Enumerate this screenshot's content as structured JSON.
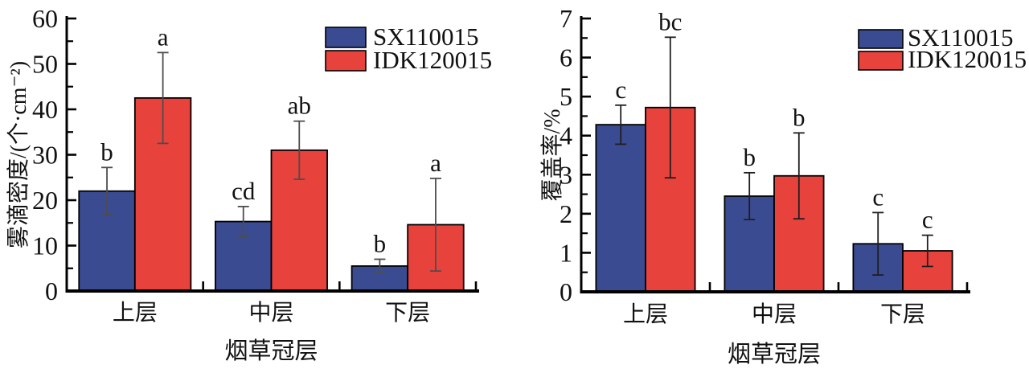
{
  "figure": {
    "background": "#ffffff",
    "description": "Two grouped bar charts comparing nozzles SX110015 and IDK120015 across tobacco canopy layers"
  },
  "colors": {
    "series_blue": "#3b4b92",
    "series_red": "#e8423d",
    "axis": "#000000",
    "error_bar_left": "#4d4d4d",
    "error_bar_right": "#1f1f1f",
    "text": "#111111"
  },
  "legend": {
    "position": "top-right",
    "entries": [
      "SX110015",
      "IDK120015"
    ]
  },
  "chart_data": [
    {
      "type": "bar",
      "title": "",
      "xlabel": "烟草冠层",
      "ylabel": "雾滴密度/(个·cm⁻²)",
      "categories": [
        "上层",
        "中层",
        "下层"
      ],
      "ylim": [
        0,
        60
      ],
      "ytick_step": 10,
      "yminor_step": 5,
      "grid": false,
      "legend_position": "top-right",
      "series": [
        {
          "name": "SX110015",
          "color_key": "series_blue",
          "values": [
            22,
            15.3,
            5.5
          ],
          "errors": [
            5.2,
            3.3,
            1.5
          ],
          "sig_labels": [
            "b",
            "cd",
            "b"
          ]
        },
        {
          "name": "IDK120015",
          "color_key": "series_red",
          "values": [
            42.5,
            31,
            14.6
          ],
          "errors": [
            10,
            6.4,
            10.2
          ],
          "sig_labels": [
            "a",
            "ab",
            "a"
          ]
        }
      ]
    },
    {
      "type": "bar",
      "title": "",
      "xlabel": "烟草冠层",
      "ylabel": "覆盖率/%",
      "categories": [
        "上层",
        "中层",
        "下层"
      ],
      "ylim": [
        0,
        7
      ],
      "ytick_step": 1,
      "yminor_step": 0.5,
      "grid": false,
      "legend_position": "top-right",
      "series": [
        {
          "name": "SX110015",
          "color_key": "series_blue",
          "values": [
            4.28,
            2.45,
            1.23
          ],
          "errors": [
            0.5,
            0.6,
            0.8
          ],
          "sig_labels": [
            "c",
            "b",
            "c"
          ]
        },
        {
          "name": "IDK120015",
          "color_key": "series_red",
          "values": [
            4.72,
            2.97,
            1.05
          ],
          "errors": [
            1.8,
            1.1,
            0.4
          ],
          "sig_labels": [
            "bc",
            "b",
            "c"
          ]
        }
      ]
    }
  ]
}
